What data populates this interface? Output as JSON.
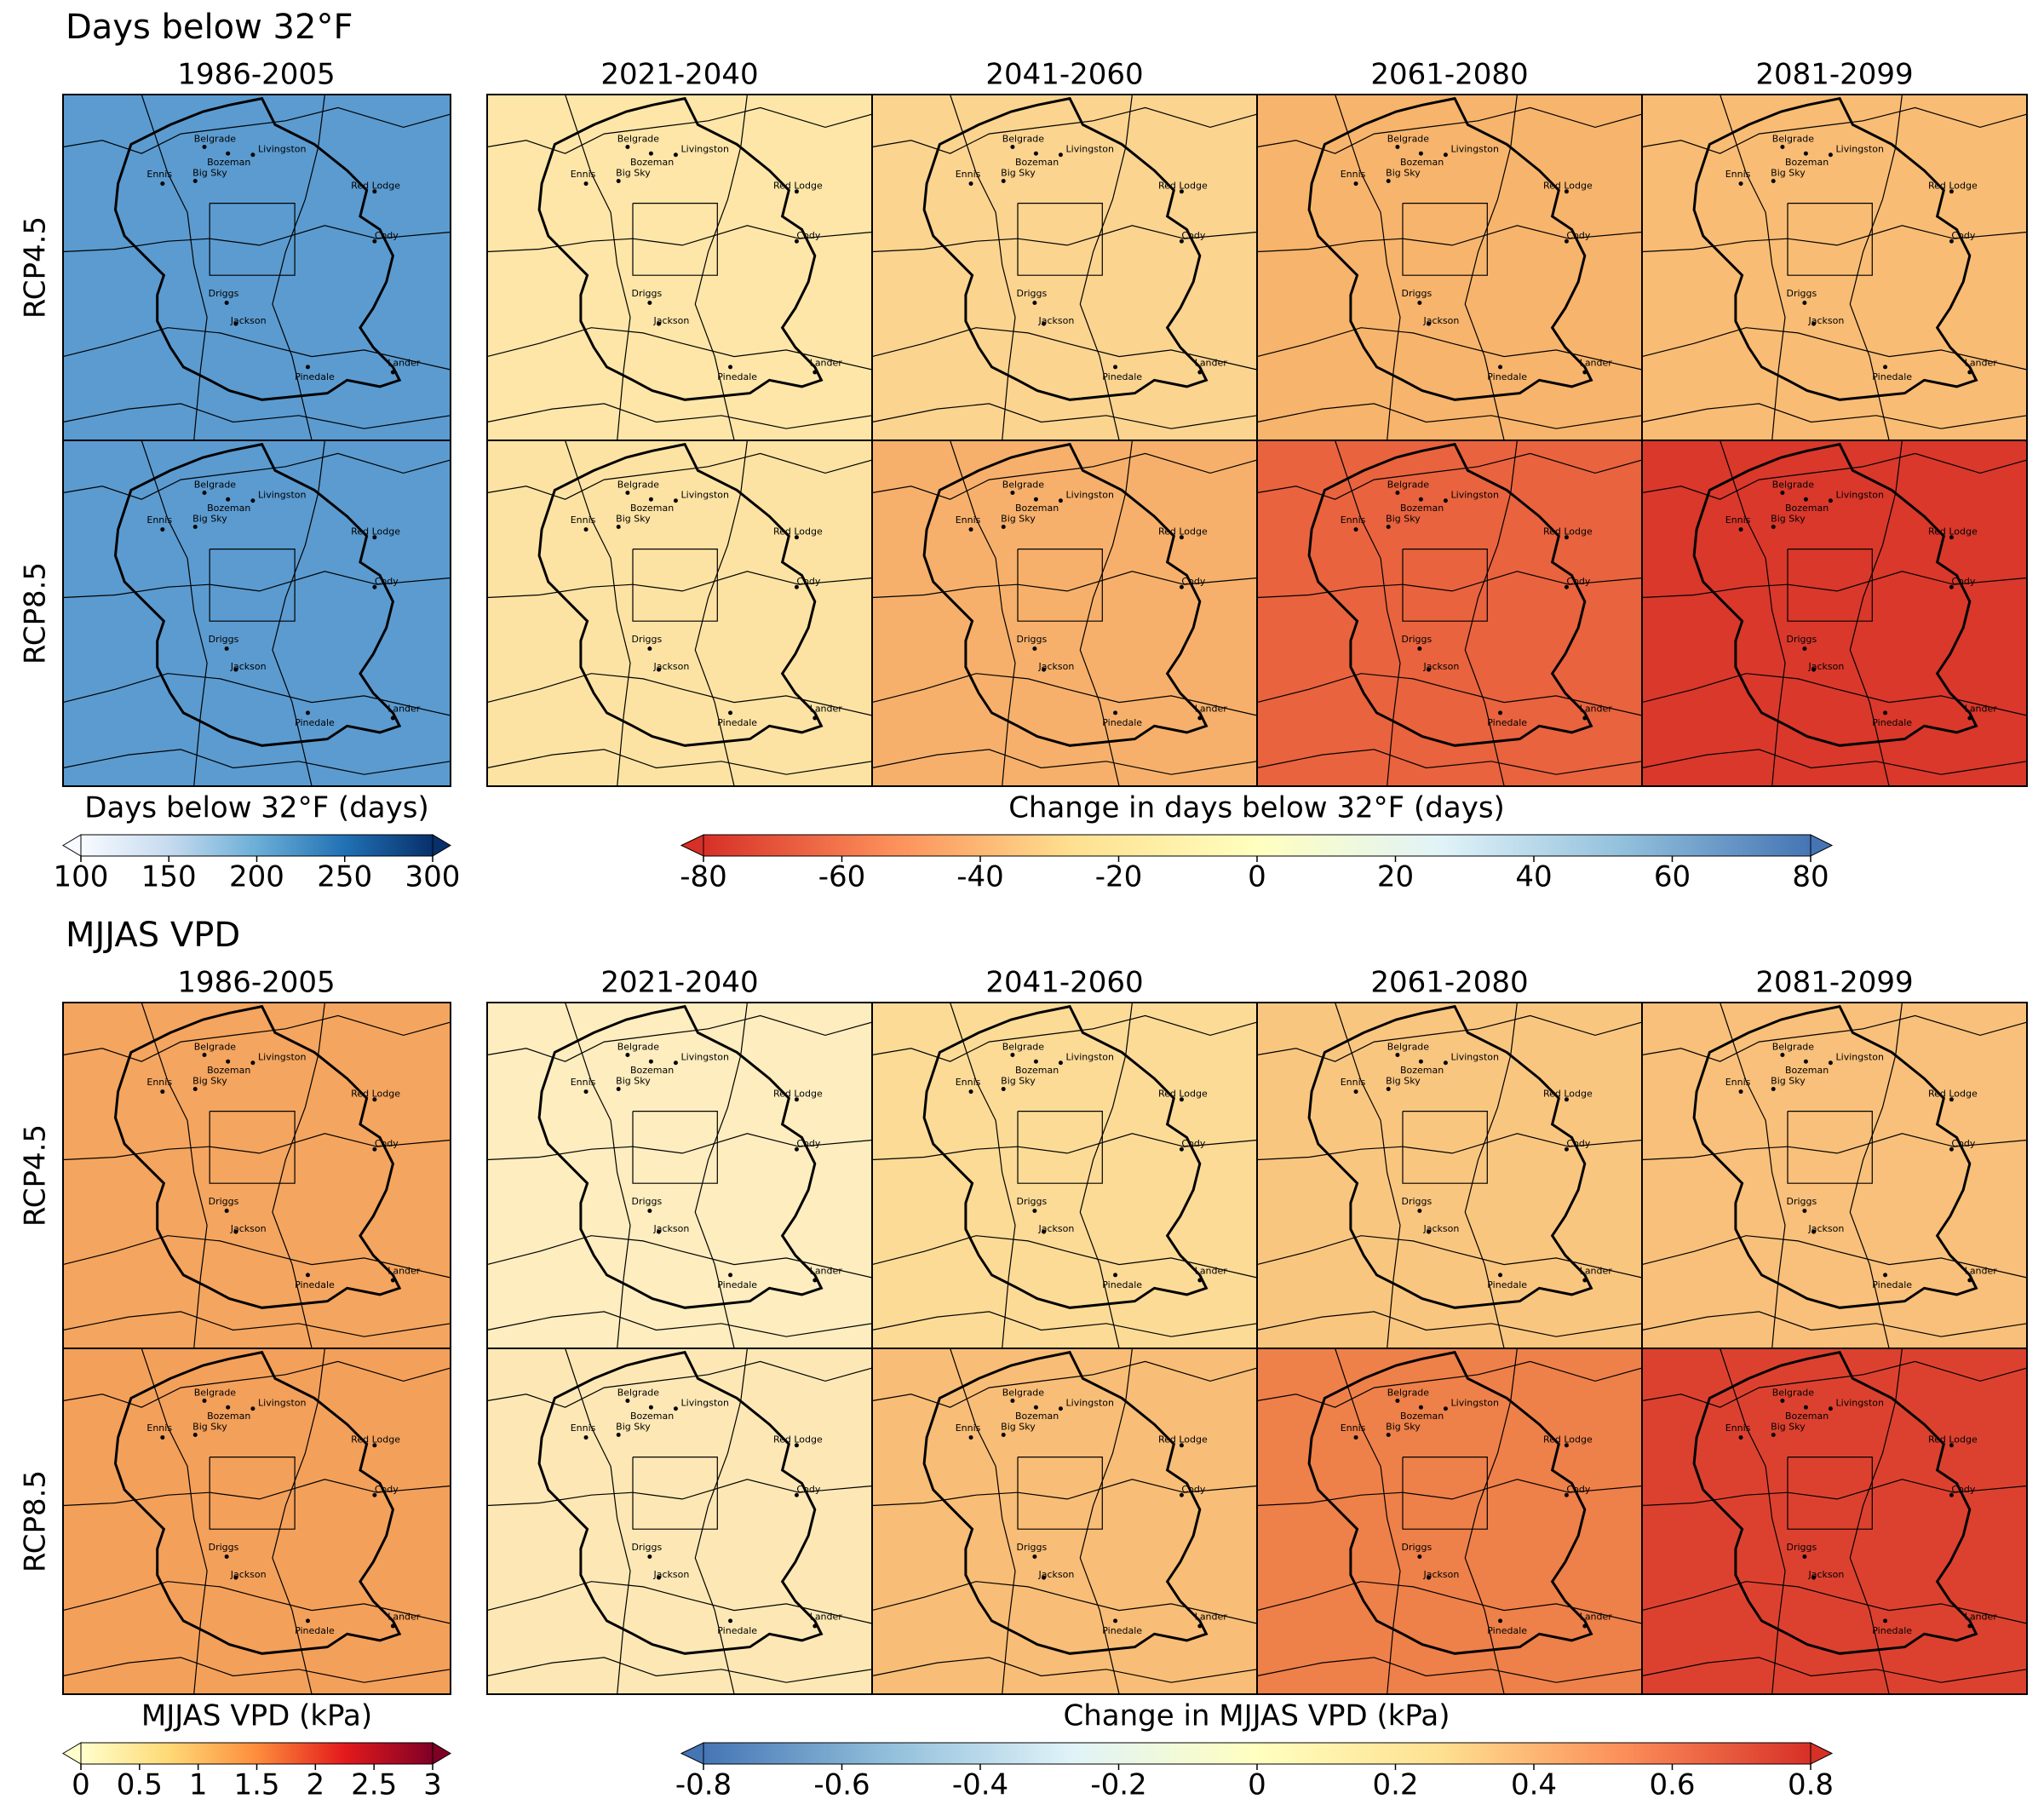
{
  "cities": [
    "Belgrade",
    "Bozeman",
    "Livingston",
    "Ennis",
    "Big Sky",
    "Red Lodge",
    "Cody",
    "Driggs",
    "Jackson",
    "Pinedale",
    "Lander"
  ],
  "sections": [
    {
      "title": "Days below 32°F",
      "baseline_period": "1986-2005",
      "periods": [
        "2021-2040",
        "2041-2060",
        "2061-2080",
        "2081-2099"
      ],
      "rows": [
        {
          "label": "RCP4.5",
          "fills": [
            "#5b9bd0",
            "#fde6a8",
            "#fbd490",
            "#f7b46c",
            "#f8bc74"
          ]
        },
        {
          "label": "RCP8.5",
          "fills": [
            "#5b9bd0",
            "#fde3a3",
            "#f6b06b",
            "#e8633e",
            "#d9382b"
          ]
        }
      ],
      "baseline_colorbar": {
        "label": "Days below 32°F (days)",
        "lim": [
          100,
          300
        ],
        "ticks": [
          100,
          150,
          200,
          250,
          300
        ],
        "colors": [
          "#f7fbff",
          "#c6dbef",
          "#6baed6",
          "#2171b5",
          "#08306b"
        ]
      },
      "change_colorbar": {
        "label": "Change in days below 32°F (days)",
        "lim": [
          -80,
          80
        ],
        "ticks": [
          -80,
          -60,
          -40,
          -20,
          0,
          20,
          40,
          60,
          80
        ],
        "colors": [
          "#d73027",
          "#fc8d59",
          "#fee090",
          "#ffffbf",
          "#e0f3f8",
          "#91bfdb",
          "#4575b4"
        ]
      }
    },
    {
      "title": "MJJAS VPD",
      "baseline_period": "1986-2005",
      "periods": [
        "2021-2040",
        "2041-2060",
        "2061-2080",
        "2081-2099"
      ],
      "rows": [
        {
          "label": "RCP4.5",
          "fills": [
            "#f4a55f",
            "#fdedbf",
            "#fcdb97",
            "#f9c680",
            "#f8c07a"
          ]
        },
        {
          "label": "RCP8.5",
          "fills": [
            "#f3a05b",
            "#fde8b5",
            "#f8bd76",
            "#ee8049",
            "#dc412f"
          ]
        }
      ],
      "baseline_colorbar": {
        "label": "MJJAS VPD (kPa)",
        "lim": [
          0,
          3
        ],
        "ticks": [
          0,
          0.5,
          1,
          1.5,
          2,
          2.5,
          3
        ],
        "colors": [
          "#ffffcc",
          "#fed976",
          "#fd8d3c",
          "#e31a1c",
          "#800026"
        ]
      },
      "change_colorbar": {
        "label": "Change in MJJAS VPD (kPa)",
        "lim": [
          -0.8,
          0.8
        ],
        "ticks": [
          -0.8,
          -0.6,
          -0.4,
          -0.2,
          0,
          0.2,
          0.4,
          0.6,
          0.8
        ],
        "colors": [
          "#4575b4",
          "#91bfdb",
          "#e0f3f8",
          "#ffffbf",
          "#fee090",
          "#fc8d59",
          "#d73027"
        ]
      }
    }
  ]
}
